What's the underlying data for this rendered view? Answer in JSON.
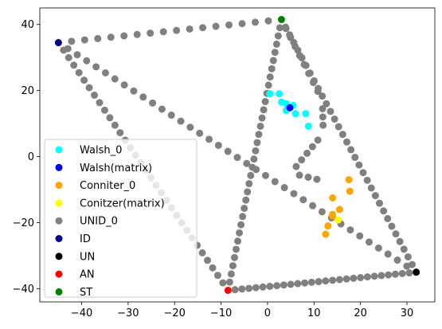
{
  "chart_data": {
    "type": "scatter",
    "title": "",
    "xlabel": "",
    "ylabel": "",
    "xlim": [
      -49,
      36
    ],
    "ylim": [
      -44,
      45
    ],
    "xticks": [
      -40,
      -30,
      -20,
      -10,
      0,
      10,
      20,
      30
    ],
    "yticks": [
      -40,
      -20,
      0,
      20,
      40
    ],
    "xtick_labels": [
      "−40",
      "−30",
      "−20",
      "−10",
      "0",
      "10",
      "20",
      "30"
    ],
    "ytick_labels": [
      "−40",
      "−20",
      "0",
      "20",
      "40"
    ],
    "grid": false,
    "legend_position": "lower-left",
    "paths": [
      {
        "series": "UNID_0",
        "from": [
          -45,
          34.5
        ],
        "to": [
          3,
          41.5
        ],
        "count": 17
      },
      {
        "series": "UNID_0",
        "from": [
          -45,
          34.5
        ],
        "to": [
          -8.5,
          -40.5
        ],
        "count": 33
      },
      {
        "series": "UNID_0",
        "from": [
          -45,
          34.5
        ],
        "to": [
          32,
          -35
        ],
        "count": 38
      },
      {
        "series": "UNID_0",
        "from": [
          -8.5,
          -40.5
        ],
        "to": [
          3,
          41.5
        ],
        "count": 33
      },
      {
        "series": "UNID_0",
        "from": [
          -8.5,
          -40.5
        ],
        "to": [
          32,
          -35
        ],
        "count": 27
      },
      {
        "series": "UNID_0",
        "from": [
          3,
          41.5
        ],
        "to": [
          32,
          -35
        ],
        "count": 33
      },
      {
        "series": "UNID_0",
        "from": [
          3,
          41.5
        ],
        "to": [
          11.8,
          17
        ],
        "count": 9
      },
      {
        "series": "UNID_0",
        "from": [
          11.8,
          17
        ],
        "to": [
          12,
          7
        ],
        "count": 4
      },
      {
        "series": "UNID_0",
        "from": [
          12,
          7
        ],
        "to": [
          5,
          -5
        ],
        "count": 6
      },
      {
        "series": "UNID_0",
        "from": [
          5,
          -5
        ],
        "to": [
          12.5,
          -7.5
        ],
        "count": 4
      }
    ],
    "series": [
      {
        "name": "Walsh_0",
        "color": "#00ffff",
        "points": [
          [
            0.5,
            19
          ],
          [
            2.5,
            19
          ],
          [
            3,
            16.5
          ],
          [
            4,
            16
          ],
          [
            4.5,
            15
          ],
          [
            5.5,
            15.5
          ],
          [
            6,
            13
          ],
          [
            8.2,
            13
          ],
          [
            8.8,
            9.2
          ],
          [
            4,
            14
          ]
        ]
      },
      {
        "name": "Walsh(matrix)",
        "color": "#0000ff",
        "points": [
          [
            4.8,
            14.8
          ]
        ]
      },
      {
        "name": "Conniter_0",
        "color": "#ffa500",
        "points": [
          [
            17.5,
            -7
          ],
          [
            17.7,
            -10.5
          ],
          [
            14,
            -12.5
          ],
          [
            15.5,
            -16
          ],
          [
            14,
            -17.5
          ],
          [
            14,
            -18
          ],
          [
            13,
            -21
          ],
          [
            12.5,
            -23.5
          ]
        ]
      },
      {
        "name": "Conitzer(matrix)",
        "color": "#ffff00",
        "points": [
          [
            15.2,
            -19.2
          ]
        ]
      },
      {
        "name": "UNID_0",
        "color": "#808080",
        "points": []
      },
      {
        "name": "ID",
        "color": "#00008b",
        "points": [
          [
            -45,
            34.5
          ]
        ]
      },
      {
        "name": "UN",
        "color": "#000000",
        "points": [
          [
            32,
            -35
          ]
        ]
      },
      {
        "name": "AN",
        "color": "#ff0000",
        "points": [
          [
            -8.5,
            -40.5
          ]
        ]
      },
      {
        "name": "ST",
        "color": "#008000",
        "points": [
          [
            3,
            41.5
          ]
        ]
      }
    ],
    "draw_order": [
      "UNID_0",
      "Walsh_0",
      "Walsh(matrix)",
      "Conniter_0",
      "Conitzer(matrix)",
      "ID",
      "UN",
      "AN",
      "ST"
    ]
  }
}
